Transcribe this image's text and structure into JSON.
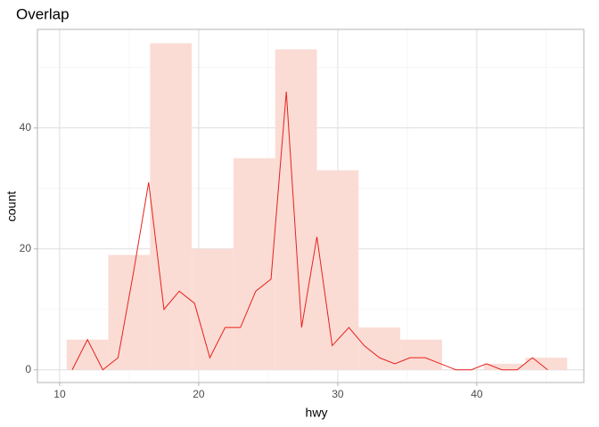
{
  "chart_data": {
    "type": "histogram",
    "title": "Overlap",
    "x_label": "hwy",
    "y_label": "count",
    "bins": [
      10.5,
      13.5,
      16.5,
      19.5,
      22.5,
      25.5,
      28.5,
      31.5,
      34.5,
      37.5,
      40.5,
      43.5,
      46.5
    ],
    "counts": [
      5,
      19,
      54,
      20,
      35,
      53,
      33,
      7,
      5,
      0,
      1,
      2
    ],
    "color": "#fadcd5",
    "overlay": {
      "type": "line",
      "color": "#e8211b",
      "x": [
        10.9,
        12,
        13.1,
        14.2,
        15.3,
        16.4,
        17.5,
        18.6,
        19.7,
        20.8,
        21.9,
        23,
        24.1,
        25.2,
        26.3,
        27.4,
        28.5,
        29.6,
        30.8,
        31.9,
        33,
        34.1,
        35.2,
        36.3,
        37.4,
        38.5,
        39.6,
        40.7,
        41.8,
        42.9,
        44,
        45.1
      ],
      "values": [
        0,
        5,
        0,
        2,
        16,
        31,
        10,
        13,
        11,
        2,
        7,
        7,
        13,
        15,
        46,
        7,
        22,
        4,
        7,
        4,
        2,
        1,
        2,
        2,
        1,
        0,
        0,
        1,
        0,
        0,
        2,
        0
      ]
    },
    "xlim": [
      8.4,
      47.7
    ],
    "ylim": [
      -2.1,
      56.3
    ],
    "xticks": [
      10,
      20,
      30,
      40
    ],
    "yticks": [
      0,
      20,
      40
    ],
    "x_minor_ticks": [
      15,
      25,
      35,
      45
    ],
    "y_minor_ticks": [
      10,
      30,
      50
    ],
    "grid": true
  }
}
